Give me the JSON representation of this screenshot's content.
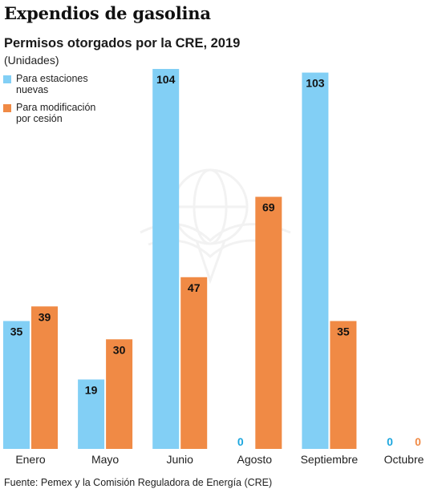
{
  "header": {
    "title": "Expendios de gasolina",
    "subtitle": "Permisos otorgados por la CRE, 2019",
    "units": "(Unidades)"
  },
  "legend": [
    {
      "label": "Para estaciones nuevas",
      "color": "#82cff5"
    },
    {
      "label": "Para modificación por cesión",
      "color": "#f08a45"
    }
  ],
  "source": "Fuente: Pemex y la Comisión Reguladora de Energía (CRE)",
  "chart_data": {
    "type": "bar",
    "categories": [
      "Enero",
      "Mayo",
      "Junio",
      "Agosto",
      "Septiembre",
      "Octubre"
    ],
    "series": [
      {
        "name": "Para estaciones nuevas",
        "color": "#82cff5",
        "label_color": "#1ba6de",
        "values": [
          35,
          19,
          104,
          0,
          103,
          0
        ]
      },
      {
        "name": "Para modificación por cesión",
        "color": "#f08a45",
        "label_color": "#f08a45",
        "values": [
          39,
          30,
          47,
          69,
          35,
          0
        ]
      }
    ],
    "title": "Permisos otorgados por la CRE, 2019",
    "ylabel": "(Unidades)",
    "ylim": [
      0,
      104
    ],
    "grid": false,
    "legend": "top-left"
  }
}
